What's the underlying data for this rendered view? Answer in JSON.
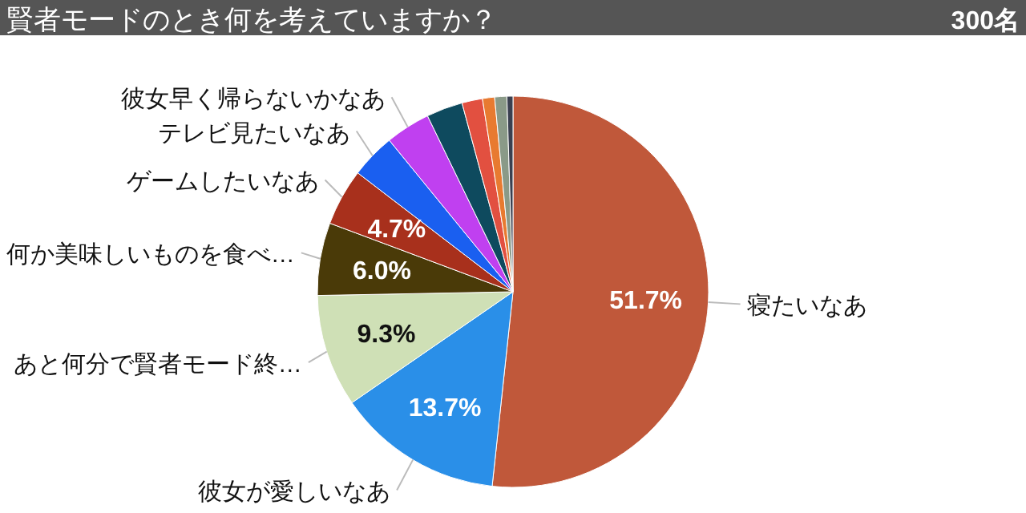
{
  "chart_data": {
    "type": "pie",
    "title": "賢者モードのとき何を考えていますか？",
    "subtitle": "300名",
    "categories": [
      "寝たいなあ",
      "彼女が愛しいなあ",
      "あと何分で賢者モード終…",
      "何か美味しいものを食べ…",
      "ゲームしたいなあ",
      "テレビ見たいなあ",
      "彼女早く帰らないかなあ",
      null,
      null,
      null,
      null,
      null
    ],
    "values": [
      51.7,
      13.7,
      9.3,
      6.0,
      4.7,
      3.7,
      3.7,
      3.0,
      1.7,
      1.0,
      1.0,
      0.5
    ],
    "value_labels": [
      "51.7%",
      "13.7%",
      "9.3%",
      "6.0%",
      "4.7%",
      null,
      null,
      null,
      null,
      null,
      null,
      null
    ],
    "colors": [
      "#c0583a",
      "#2a8fe8",
      "#cfe0b6",
      "#4a3a08",
      "#a8301c",
      "#1a5ff0",
      "#c040f0",
      "#0e4a5e",
      "#e25040",
      "#e87a30",
      "#8a9a88",
      "#3a4050"
    ]
  }
}
